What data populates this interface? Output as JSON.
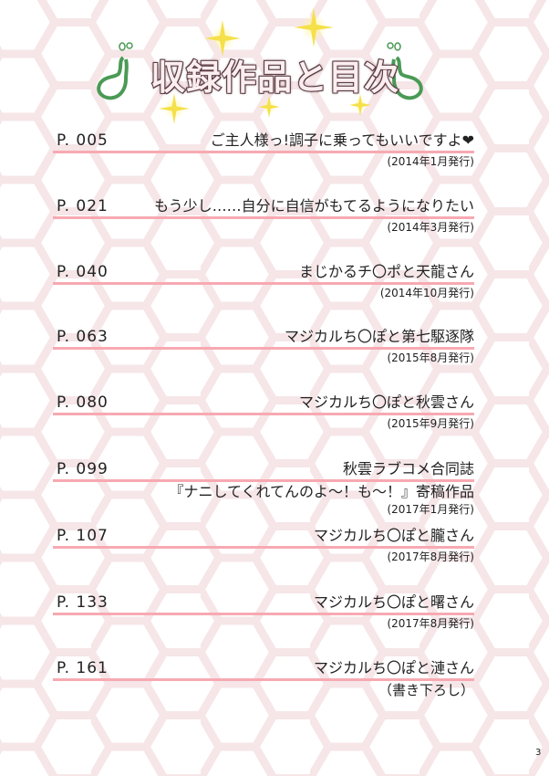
{
  "header": {
    "title": "収録作品と目次"
  },
  "entries": [
    {
      "page": "P. 005",
      "title": "ご主人様っ!調子に乗ってもいいですよ❤",
      "date": "(2014年1月発行)"
    },
    {
      "page": "P. 021",
      "title": "もう少し……自分に自信がもてるようになりたい",
      "date": "(2014年3月発行)"
    },
    {
      "page": "P. 040",
      "title": "まじかるチ〇ポと天龍さん",
      "date": "(2014年10月発行)"
    },
    {
      "page": "P. 063",
      "title": "マジカルち〇ぽと第七駆逐隊",
      "date": "(2015年8月発行)"
    },
    {
      "page": "P. 080",
      "title": "マジカルち〇ぽと秋雲さん",
      "date": "(2015年9月発行)"
    },
    {
      "page": "P. 099",
      "title": "秋雲ラブコメ合同誌",
      "subtitle": "『ナニしてくれてんのよ～！も～！』寄稿作品",
      "date": "(2017年1月発行)"
    },
    {
      "page": "P. 107",
      "title": "マジカルち〇ぽと朧さん",
      "date": "(2017年8月発行)"
    },
    {
      "page": "P. 133",
      "title": "マジカルち〇ぽと曙さん",
      "date": "(2017年8月発行)"
    },
    {
      "page": "P. 161",
      "title": "マジカルち〇ぽと漣さん",
      "date": "（書き下ろし）"
    }
  ],
  "footer": {
    "page_number": "3"
  },
  "colors": {
    "rule": "#f7a9b2",
    "hex_pattern": "#f6e6e8",
    "title_outline": "#5a3a40",
    "gourd": "#4a9a55"
  }
}
